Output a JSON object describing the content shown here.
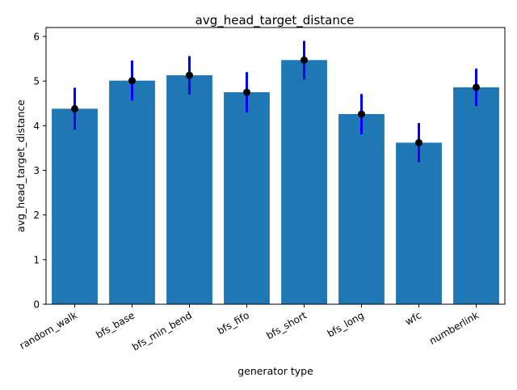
{
  "chart_data": {
    "type": "bar",
    "title": "avg_head_target_distance",
    "xlabel": "generator type",
    "ylabel": "avg_head_target_distance",
    "categories": [
      "random_walk",
      "bfs_base",
      "bfs_min_bend",
      "bfs_fifo",
      "bfs_short",
      "bfs_long",
      "wfc",
      "numberlink"
    ],
    "values": [
      4.38,
      5.01,
      5.13,
      4.75,
      5.47,
      4.26,
      3.62,
      4.86
    ],
    "error": [
      0.47,
      0.45,
      0.43,
      0.45,
      0.43,
      0.45,
      0.44,
      0.42
    ],
    "ylim": [
      0,
      6.2
    ],
    "yticks": [
      0,
      1,
      2,
      3,
      4,
      5,
      6
    ],
    "grid": false,
    "bar_color": "#1f77b4",
    "errorbar_color": "#0000ff",
    "marker_color": "#000000"
  }
}
